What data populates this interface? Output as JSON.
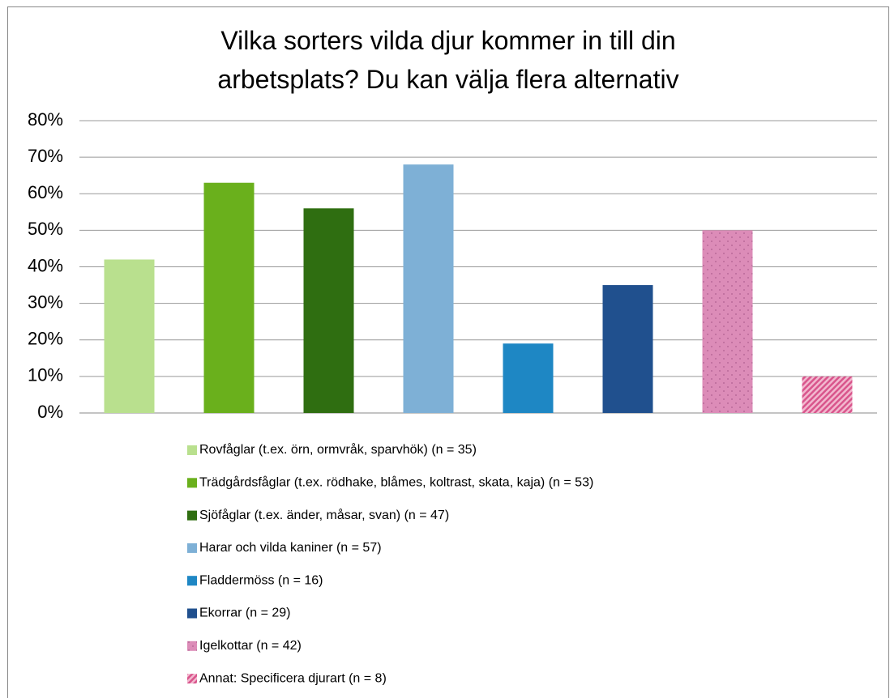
{
  "chart_data": {
    "type": "bar",
    "title": "Vilka sorters vilda djur kommer in till din arbetsplats? Du kan välja flera alternativ",
    "categories": [
      "Rovfåglar (t.ex. örn, ormvråk, sparvhök) (n = 35)",
      "Trädgårdsfåglar (t.ex. rödhake, blåmes, koltrast, skata, kaja) (n = 53)",
      "Sjöfåglar (t.ex. änder, måsar, svan) (n = 47)",
      "Harar och vilda kaniner (n = 57)",
      "Fladdermöss (n = 16)",
      "Ekorrar (n = 29)",
      "Igelkottar (n = 42)",
      "Annat: Specificera djurart (n = 8)"
    ],
    "values": [
      42,
      63,
      56,
      68,
      19,
      35,
      50,
      10
    ],
    "colors": [
      "#b9e08e",
      "#6ab01c",
      "#2f6e11",
      "#7eb0d6",
      "#1e87c4",
      "#20508e",
      "#dc8cb8",
      "#d9558c"
    ],
    "patterns": [
      null,
      null,
      null,
      null,
      null,
      null,
      "dots",
      "hatch"
    ],
    "ylim": [
      0,
      80
    ],
    "yticks": [
      {
        "value": 0,
        "label": "0%"
      },
      {
        "value": 10,
        "label": "10%"
      },
      {
        "value": 20,
        "label": "20%"
      },
      {
        "value": 30,
        "label": "30%"
      },
      {
        "value": 40,
        "label": "40%"
      },
      {
        "value": 50,
        "label": "50%"
      },
      {
        "value": 60,
        "label": "60%"
      },
      {
        "value": 70,
        "label": "70%"
      },
      {
        "value": 80,
        "label": "80%"
      }
    ],
    "grid": true,
    "legend": "bottom"
  }
}
